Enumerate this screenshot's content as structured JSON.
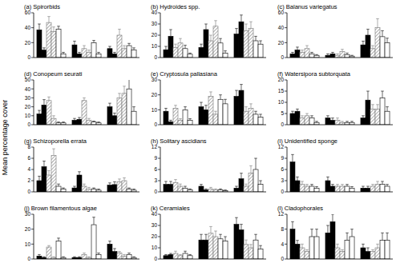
{
  "ylabel": "Mean percentage cover",
  "chart_data": [
    {
      "type": "bar",
      "title": "(a) Spirorbids",
      "categories": [
        null,
        null,
        null
      ],
      "ylim": [
        0,
        60
      ],
      "yticks": [
        0,
        20,
        40,
        60
      ],
      "series": [
        {
          "color": "#000000",
          "values": [
            37,
            17,
            12
          ],
          "error": [
            8,
            5,
            3
          ]
        },
        {
          "color": "#000000",
          "values": [
            10,
            5,
            5
          ],
          "error": [
            3,
            2,
            2
          ]
        },
        {
          "color": "#777777",
          "values": [
            47,
            12,
            30
          ],
          "error": [
            8,
            4,
            8
          ]
        },
        {
          "color": "#777777",
          "values": [
            35,
            7,
            12
          ],
          "error": [
            6,
            3,
            4
          ]
        },
        {
          "color": "#ffffff",
          "values": [
            38,
            20,
            16
          ],
          "error": [
            4,
            3,
            3
          ]
        },
        {
          "color": "#ffffff",
          "values": [
            5,
            5,
            10
          ],
          "error": [
            2,
            2,
            3
          ]
        }
      ]
    },
    {
      "type": "bar",
      "title": "(b) Hydroides spp.",
      "categories": [
        null,
        null,
        null
      ],
      "ylim": [
        0,
        40
      ],
      "yticks": [
        0,
        10,
        20,
        30,
        40
      ],
      "series": [
        {
          "color": "#000000",
          "values": [
            7,
            9,
            21
          ],
          "error": [
            3,
            3,
            5
          ]
        },
        {
          "color": "#000000",
          "values": [
            19,
            25,
            32
          ],
          "error": [
            6,
            5,
            6
          ]
        },
        {
          "color": "#777777",
          "values": [
            9,
            15,
            24
          ],
          "error": [
            3,
            5,
            6
          ]
        },
        {
          "color": "#777777",
          "values": [
            13,
            28,
            26
          ],
          "error": [
            4,
            5,
            6
          ]
        },
        {
          "color": "#ffffff",
          "values": [
            8,
            13,
            15
          ],
          "error": [
            3,
            4,
            4
          ]
        },
        {
          "color": "#ffffff",
          "values": [
            3,
            4,
            12
          ],
          "error": [
            1,
            2,
            3
          ]
        }
      ]
    },
    {
      "type": "bar",
      "title": "(c) Balanus variegatus",
      "categories": [
        null,
        null,
        null
      ],
      "ylim": [
        0,
        60
      ],
      "yticks": [
        0,
        20,
        40,
        60
      ],
      "series": [
        {
          "color": "#000000",
          "values": [
            5,
            3,
            17
          ],
          "error": [
            2,
            2,
            5
          ]
        },
        {
          "color": "#000000",
          "values": [
            10,
            5,
            30
          ],
          "error": [
            4,
            2,
            8
          ]
        },
        {
          "color": "#777777",
          "values": [
            7,
            3,
            12
          ],
          "error": [
            3,
            2,
            4
          ]
        },
        {
          "color": "#777777",
          "values": [
            12,
            8,
            40
          ],
          "error": [
            4,
            3,
            12
          ]
        },
        {
          "color": "#ffffff",
          "values": [
            5,
            4,
            28
          ],
          "error": [
            2,
            2,
            8
          ]
        },
        {
          "color": "#ffffff",
          "values": [
            3,
            2,
            20
          ],
          "error": [
            1,
            1,
            6
          ]
        }
      ]
    },
    {
      "type": "bar",
      "title": "(d) Conopeum seurati",
      "categories": [
        null,
        null,
        null
      ],
      "ylim": [
        0,
        50
      ],
      "yticks": [
        0,
        10,
        20,
        30,
        40,
        50
      ],
      "series": [
        {
          "color": "#000000",
          "values": [
            12,
            5,
            20
          ],
          "error": [
            4,
            2,
            4
          ]
        },
        {
          "color": "#000000",
          "values": [
            22,
            6,
            10
          ],
          "error": [
            6,
            2,
            3
          ]
        },
        {
          "color": "#777777",
          "values": [
            27,
            27,
            30
          ],
          "error": [
            4,
            3,
            5
          ]
        },
        {
          "color": "#777777",
          "values": [
            7,
            5,
            35
          ],
          "error": [
            3,
            2,
            8
          ]
        },
        {
          "color": "#ffffff",
          "values": [
            2,
            3,
            40
          ],
          "error": [
            1,
            1,
            12
          ]
        },
        {
          "color": "#ffffff",
          "values": [
            2,
            2,
            15
          ],
          "error": [
            1,
            1,
            5
          ]
        }
      ]
    },
    {
      "type": "bar",
      "title": "(e) Cryptosula pallasiana",
      "categories": [
        null,
        null,
        null
      ],
      "ylim": [
        0,
        30
      ],
      "yticks": [
        0,
        10,
        20,
        30
      ],
      "series": [
        {
          "color": "#000000",
          "values": [
            9,
            12,
            19
          ],
          "error": [
            2,
            3,
            4
          ]
        },
        {
          "color": "#000000",
          "values": [
            2,
            10,
            23
          ],
          "error": [
            1,
            3,
            4
          ]
        },
        {
          "color": "#777777",
          "values": [
            11,
            19,
            9
          ],
          "error": [
            2,
            3,
            3
          ]
        },
        {
          "color": "#777777",
          "values": [
            3,
            7,
            11
          ],
          "error": [
            1,
            2,
            3
          ]
        },
        {
          "color": "#ffffff",
          "values": [
            10,
            17,
            7
          ],
          "error": [
            2,
            3,
            2
          ]
        },
        {
          "color": "#ffffff",
          "values": [
            3,
            14,
            5
          ],
          "error": [
            1,
            3,
            2
          ]
        }
      ]
    },
    {
      "type": "bar",
      "title": "(f) Watersipora subtorquata",
      "categories": [
        null,
        null,
        null
      ],
      "ylim": [
        0,
        20
      ],
      "yticks": [
        0,
        5,
        10,
        15,
        20
      ],
      "series": [
        {
          "color": "#000000",
          "values": [
            5,
            3,
            3
          ],
          "error": [
            1,
            1,
            1
          ]
        },
        {
          "color": "#000000",
          "values": [
            6,
            2,
            11
          ],
          "error": [
            1,
            1,
            4
          ]
        },
        {
          "color": "#777777",
          "values": [
            3,
            2,
            7
          ],
          "error": [
            1,
            1,
            2
          ]
        },
        {
          "color": "#777777",
          "values": [
            4,
            1,
            7
          ],
          "error": [
            1,
            0.5,
            2
          ]
        },
        {
          "color": "#ffffff",
          "values": [
            3,
            1,
            12
          ],
          "error": [
            1,
            0.5,
            3
          ]
        },
        {
          "color": "#ffffff",
          "values": [
            1,
            1,
            6
          ],
          "error": [
            0.5,
            0.5,
            2
          ]
        }
      ]
    },
    {
      "type": "bar",
      "title": "(g) Schizoporella errata",
      "categories": [
        null,
        null,
        null
      ],
      "ylim": [
        0,
        8
      ],
      "yticks": [
        0,
        2,
        4,
        6,
        8
      ],
      "series": [
        {
          "color": "#000000",
          "values": [
            2,
            0.7,
            1.2
          ],
          "error": [
            0.8,
            0.3,
            0.4
          ]
        },
        {
          "color": "#000000",
          "values": [
            4.5,
            3,
            1.3
          ],
          "error": [
            1,
            0.6,
            0.5
          ]
        },
        {
          "color": "#777777",
          "values": [
            3,
            1,
            1.8
          ],
          "error": [
            0.8,
            0.4,
            0.5
          ]
        },
        {
          "color": "#777777",
          "values": [
            6.5,
            0.5,
            2
          ],
          "error": [
            1.2,
            0.3,
            0.5
          ]
        },
        {
          "color": "#ffffff",
          "values": [
            1,
            0.5,
            0.5
          ],
          "error": [
            0.4,
            0.2,
            0.2
          ]
        },
        {
          "color": "#ffffff",
          "values": [
            0.5,
            0.3,
            0.3
          ],
          "error": [
            0.2,
            0.2,
            0.2
          ]
        }
      ]
    },
    {
      "type": "bar",
      "title": "(h) Solitary ascidians",
      "categories": [
        null,
        null,
        null
      ],
      "ylim": [
        0,
        12
      ],
      "yticks": [
        0,
        3,
        6,
        9,
        12
      ],
      "series": [
        {
          "color": "#000000",
          "values": [
            2,
            1.5,
            1
          ],
          "error": [
            0.8,
            0.5,
            0.5
          ]
        },
        {
          "color": "#000000",
          "values": [
            2,
            0.5,
            3.5
          ],
          "error": [
            0.8,
            0.3,
            1.5
          ]
        },
        {
          "color": "#777777",
          "values": [
            2.5,
            0.8,
            1.5
          ],
          "error": [
            0.8,
            0.4,
            0.6
          ]
        },
        {
          "color": "#777777",
          "values": [
            1.5,
            0.5,
            5
          ],
          "error": [
            0.6,
            0.3,
            2
          ]
        },
        {
          "color": "#ffffff",
          "values": [
            1,
            0.5,
            6
          ],
          "error": [
            0.5,
            0.3,
            3
          ]
        },
        {
          "color": "#ffffff",
          "values": [
            0.5,
            0.3,
            2
          ],
          "error": [
            0.3,
            0.2,
            1
          ]
        }
      ]
    },
    {
      "type": "bar",
      "title": "(i) Unidentified sponge",
      "categories": [
        null,
        null,
        null
      ],
      "ylim": [
        0,
        12
      ],
      "yticks": [
        0,
        3,
        6,
        9,
        12
      ],
      "series": [
        {
          "color": "#000000",
          "values": [
            8,
            3,
            1
          ],
          "error": [
            2,
            1,
            0.5
          ]
        },
        {
          "color": "#000000",
          "values": [
            3,
            1.5,
            1
          ],
          "error": [
            1,
            0.5,
            0.5
          ]
        },
        {
          "color": "#777777",
          "values": [
            2,
            1.5,
            1.5
          ],
          "error": [
            0.8,
            0.5,
            0.5
          ]
        },
        {
          "color": "#777777",
          "values": [
            1.5,
            1.5,
            2
          ],
          "error": [
            0.5,
            0.5,
            0.8
          ]
        },
        {
          "color": "#ffffff",
          "values": [
            1.5,
            1.5,
            2
          ],
          "error": [
            0.5,
            0.5,
            0.8
          ]
        },
        {
          "color": "#ffffff",
          "values": [
            1,
            1,
            1.5
          ],
          "error": [
            0.4,
            0.4,
            0.5
          ]
        }
      ]
    },
    {
      "type": "bar",
      "title": "(j) Brown filamentous algae",
      "categories": [
        null,
        null,
        null
      ],
      "ylim": [
        0,
        30
      ],
      "yticks": [
        0,
        10,
        20,
        30
      ],
      "series": [
        {
          "color": "#000000",
          "values": [
            2,
            1,
            10
          ],
          "error": [
            1,
            0.5,
            2
          ]
        },
        {
          "color": "#000000",
          "values": [
            1,
            1,
            5
          ],
          "error": [
            0.5,
            0.5,
            2
          ]
        },
        {
          "color": "#777777",
          "values": [
            8,
            3,
            4
          ],
          "error": [
            1,
            1,
            1
          ]
        },
        {
          "color": "#777777",
          "values": [
            1,
            1,
            2
          ],
          "error": [
            0.5,
            0.5,
            1
          ]
        },
        {
          "color": "#ffffff",
          "values": [
            12,
            23,
            3
          ],
          "error": [
            2,
            5,
            1
          ]
        },
        {
          "color": "#ffffff",
          "values": [
            1,
            3,
            1
          ],
          "error": [
            0.5,
            1,
            0.5
          ]
        }
      ]
    },
    {
      "type": "bar",
      "title": "(k) Ceramiales",
      "categories": [
        null,
        null,
        null
      ],
      "ylim": [
        0,
        40
      ],
      "yticks": [
        0,
        10,
        20,
        30,
        40
      ],
      "series": [
        {
          "color": "#000000",
          "values": [
            3,
            17,
            31
          ],
          "error": [
            1,
            5,
            6
          ]
        },
        {
          "color": "#000000",
          "values": [
            4,
            17,
            26
          ],
          "error": [
            1,
            5,
            5
          ]
        },
        {
          "color": "#777777",
          "values": [
            5,
            23,
            13
          ],
          "error": [
            2,
            6,
            4
          ]
        },
        {
          "color": "#777777",
          "values": [
            3,
            20,
            10
          ],
          "error": [
            1,
            5,
            3
          ]
        },
        {
          "color": "#ffffff",
          "values": [
            5,
            18,
            17
          ],
          "error": [
            2,
            4,
            5
          ]
        },
        {
          "color": "#ffffff",
          "values": [
            3,
            16,
            9
          ],
          "error": [
            1,
            4,
            3
          ]
        }
      ]
    },
    {
      "type": "bar",
      "title": "(l) Cladophorales",
      "categories": [
        null,
        null,
        null
      ],
      "ylim": [
        0,
        12
      ],
      "yticks": [
        0,
        4,
        8,
        12
      ],
      "series": [
        {
          "color": "#000000",
          "values": [
            8,
            7,
            3
          ],
          "error": [
            2,
            2,
            1
          ]
        },
        {
          "color": "#000000",
          "values": [
            4,
            10,
            2
          ],
          "error": [
            1,
            2,
            1
          ]
        },
        {
          "color": "#777777",
          "values": [
            3,
            3,
            2
          ],
          "error": [
            1,
            1,
            0.5
          ]
        },
        {
          "color": "#777777",
          "values": [
            2,
            2,
            3
          ],
          "error": [
            0.5,
            0.5,
            1
          ]
        },
        {
          "color": "#ffffff",
          "values": [
            6,
            5,
            5
          ],
          "error": [
            2,
            2,
            2
          ]
        },
        {
          "color": "#ffffff",
          "values": [
            6,
            6,
            5
          ],
          "error": [
            2,
            2,
            2
          ]
        }
      ]
    }
  ]
}
